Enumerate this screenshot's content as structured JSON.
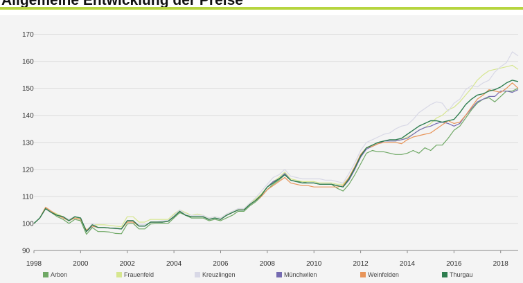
{
  "header": {
    "title": "Allgemeine Entwicklung der Preise"
  },
  "chart_data": {
    "type": "line",
    "title": "Allgemeine Entwicklung der Preise",
    "xlabel": "",
    "ylabel": "",
    "xlim": [
      1998,
      2018.75
    ],
    "ylim": [
      90,
      175
    ],
    "yticks": [
      90,
      100,
      110,
      120,
      130,
      140,
      150,
      160,
      170
    ],
    "xticks": [
      "1998",
      "2000",
      "2002",
      "2004",
      "2006",
      "2008",
      "2010",
      "2012",
      "2014",
      "2016",
      "2018"
    ],
    "grid": "horizontal",
    "legend": "bottom",
    "x": [
      1998,
      1998.25,
      1998.5,
      1998.75,
      1999,
      1999.25,
      1999.5,
      1999.75,
      2000,
      2000.25,
      2000.5,
      2000.75,
      2001,
      2001.25,
      2001.5,
      2001.75,
      2002,
      2002.25,
      2002.5,
      2002.75,
      2003,
      2003.25,
      2003.5,
      2003.75,
      2004,
      2004.25,
      2004.5,
      2004.75,
      2005,
      2005.25,
      2005.5,
      2005.75,
      2006,
      2006.25,
      2006.5,
      2006.75,
      2007,
      2007.25,
      2007.5,
      2007.75,
      2008,
      2008.25,
      2008.5,
      2008.75,
      2009,
      2009.25,
      2009.5,
      2009.75,
      2010,
      2010.25,
      2010.5,
      2010.75,
      2011,
      2011.25,
      2011.5,
      2011.75,
      2012,
      2012.25,
      2012.5,
      2012.75,
      2013,
      2013.25,
      2013.5,
      2013.75,
      2014,
      2014.25,
      2014.5,
      2014.75,
      2015,
      2015.25,
      2015.5,
      2015.75,
      2016,
      2016.25,
      2016.5,
      2016.75,
      2017,
      2017.25,
      2017.5,
      2017.75,
      2018,
      2018.25,
      2018.5,
      2018.75
    ],
    "series": [
      {
        "name": "Arbon",
        "color": "#6fa865",
        "values": [
          100,
          102,
          105.5,
          104,
          102.5,
          101.5,
          100,
          101.5,
          101,
          96,
          98.5,
          97,
          97,
          96.8,
          96.3,
          96.2,
          99.8,
          100,
          98,
          98,
          99.8,
          99.9,
          100,
          100,
          102,
          104,
          103,
          102,
          102,
          102,
          101,
          101.5,
          101,
          102,
          103,
          104.5,
          104.5,
          106.5,
          108,
          110,
          112.5,
          114.5,
          116,
          118,
          116,
          115.5,
          115.5,
          115,
          115,
          114.5,
          114.5,
          114.5,
          113,
          112,
          114.5,
          118,
          122,
          126,
          127,
          126.5,
          126.5,
          126,
          125.5,
          125.5,
          126,
          127,
          126,
          128,
          127,
          129,
          129,
          131.5,
          134.5,
          136,
          139,
          142,
          144.5,
          146,
          146.5,
          145,
          147,
          149,
          149,
          150
        ]
      },
      {
        "name": "Frauenfeld",
        "color": "#d6e68f",
        "values": [
          100,
          102,
          106,
          104.5,
          103.5,
          102.5,
          101.5,
          102.5,
          101.5,
          97.5,
          99.5,
          99.5,
          99.5,
          99.3,
          99,
          98.8,
          102.5,
          102.5,
          100.5,
          100.5,
          101.5,
          101.5,
          101.5,
          101.5,
          103.5,
          105,
          104,
          103,
          103.5,
          103,
          102,
          102.5,
          102,
          103.5,
          104.5,
          105.5,
          105.5,
          107.5,
          109,
          111,
          113.5,
          115.5,
          117,
          119,
          116.5,
          116,
          115.5,
          115.5,
          115.5,
          115,
          115,
          115,
          114.5,
          114.5,
          117,
          121,
          125,
          128,
          129,
          130,
          130.5,
          130.5,
          130.5,
          131,
          132,
          133,
          134.5,
          135.5,
          137,
          139,
          140,
          142,
          143,
          145,
          147.5,
          150,
          153,
          155,
          156.5,
          157,
          157.5,
          158,
          158.5,
          157
        ]
      },
      {
        "name": "Kreuzlingen",
        "color": "#d8d8e6",
        "values": [
          100,
          102,
          106,
          104.5,
          103,
          102.5,
          101.5,
          102.5,
          102,
          97,
          100,
          98.5,
          98.5,
          98.3,
          98,
          97.8,
          101,
          101,
          99.5,
          99.5,
          100.5,
          100.5,
          101,
          101,
          103,
          105,
          103.5,
          103,
          103,
          103,
          102,
          102.5,
          102,
          103.5,
          104.5,
          105.5,
          105.5,
          107.5,
          109.5,
          112,
          114.5,
          117,
          118,
          120,
          117.5,
          117,
          116.5,
          116.5,
          116.5,
          116.5,
          116,
          116,
          115.5,
          115,
          118.5,
          122.5,
          127,
          130,
          131,
          132,
          133,
          133.5,
          135,
          136,
          136.5,
          138.5,
          141,
          142.5,
          144,
          145,
          144.5,
          141.5,
          144.5,
          146,
          149.5,
          151,
          150.5,
          152,
          153,
          156,
          158,
          159.5,
          163.5,
          162
        ]
      },
      {
        "name": "Münchwilen",
        "color": "#756bb1",
        "values": [
          100,
          102,
          105.5,
          104,
          103,
          102.5,
          101,
          102.5,
          102,
          97,
          99,
          98.5,
          98.5,
          98.3,
          98.2,
          98,
          101,
          101,
          99,
          99,
          100.5,
          100.5,
          100.5,
          100.8,
          102.5,
          104.5,
          103,
          102.5,
          102.5,
          102.5,
          101.5,
          102,
          101.5,
          103,
          104,
          105,
          105,
          107,
          108.5,
          110.5,
          113.5,
          115.5,
          116.5,
          118.5,
          116,
          115.5,
          115,
          115,
          115,
          114.5,
          114.5,
          114.5,
          114,
          113.5,
          116,
          120,
          124.5,
          127.5,
          128.5,
          129.5,
          130.5,
          130.5,
          130.5,
          131,
          131.5,
          133,
          134.5,
          135.5,
          136,
          137,
          137.5,
          137,
          136,
          137,
          140,
          142.5,
          145,
          146,
          147,
          147,
          149,
          149,
          148.5,
          149.5
        ]
      },
      {
        "name": "Weinfelden",
        "color": "#e8955a",
        "values": [
          100,
          102,
          106,
          104.5,
          103,
          102,
          101,
          102,
          101.5,
          97.5,
          99,
          98.5,
          98.5,
          98.3,
          98.2,
          98,
          100.5,
          100.5,
          99,
          99,
          100.5,
          100.5,
          100.5,
          100.8,
          102.5,
          104.5,
          103,
          102.5,
          102.5,
          102.5,
          101.5,
          102,
          101.5,
          103,
          104,
          105,
          105,
          107,
          108.5,
          110,
          112.5,
          114,
          115.5,
          117,
          115,
          114.5,
          114,
          114,
          113.5,
          113.5,
          113.5,
          113.5,
          113.5,
          114,
          117,
          121,
          125.5,
          128,
          128.5,
          129.5,
          130,
          130,
          130,
          129.5,
          131,
          132,
          132.5,
          133,
          133.5,
          135,
          136.5,
          138,
          137,
          137.5,
          140,
          143,
          146,
          147.5,
          149.5,
          149,
          148.5,
          150,
          152,
          150
        ]
      },
      {
        "name": "Thurgau",
        "color": "#2e7d4f",
        "values": [
          100,
          102,
          105.5,
          104,
          103,
          102.5,
          101,
          102.5,
          102,
          97,
          99.5,
          98.5,
          98.5,
          98.3,
          98.2,
          98,
          101,
          101,
          99,
          99,
          100.5,
          100.5,
          100.5,
          100.8,
          102.5,
          104.5,
          103,
          102.5,
          102.5,
          102.5,
          101.5,
          102,
          101.5,
          103,
          104,
          105,
          105,
          107,
          108.5,
          110.5,
          113.5,
          115,
          116.5,
          118,
          116,
          115.5,
          115,
          115,
          115,
          114.5,
          114.5,
          114.5,
          114,
          113.5,
          116.5,
          120.5,
          125,
          128,
          129,
          130,
          130.5,
          131,
          131,
          131.5,
          133,
          134.5,
          136,
          137,
          138,
          138,
          137.5,
          138,
          138.5,
          141,
          144,
          146,
          147.5,
          148,
          149,
          149.5,
          150.5,
          152,
          153,
          152.5
        ]
      }
    ]
  }
}
